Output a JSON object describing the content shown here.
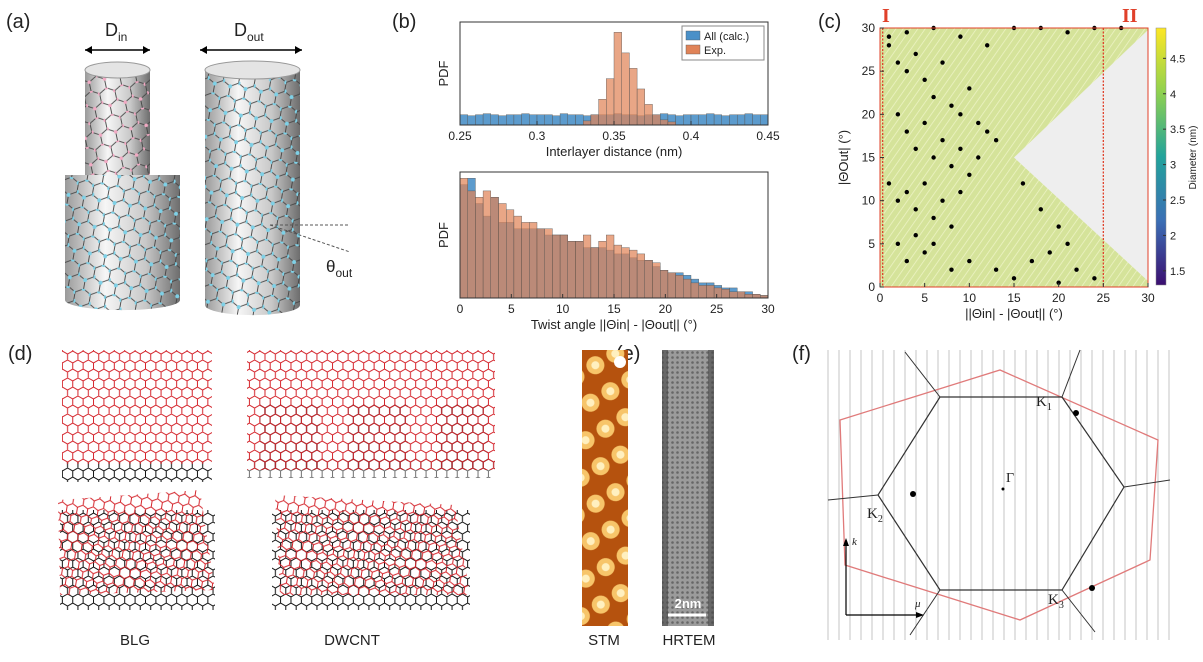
{
  "figure": {
    "a": {
      "label": "(a)",
      "d_in": {
        "main": "D",
        "sub": "in"
      },
      "d_out": {
        "main": "D",
        "sub": "out"
      },
      "theta_out": {
        "main": "θ",
        "sub": "out"
      }
    },
    "b": {
      "label": "(b)"
    },
    "c": {
      "label": "(c)"
    },
    "d": {
      "label": "(d)",
      "captions": [
        "BLG",
        "DWCNT"
      ]
    },
    "e": {
      "label": "(e)",
      "captions": [
        "STM",
        "HRTEM"
      ],
      "scale_bar": "2nm"
    },
    "f": {
      "label": "(f)",
      "k1": {
        "main": "K",
        "sub": "1"
      },
      "k2": {
        "main": "K",
        "sub": "2"
      },
      "k3": {
        "main": "K",
        "sub": "3"
      },
      "gamma": "Γ",
      "k": "k",
      "mu": "μ"
    }
  },
  "chart_data": [
    {
      "type": "histogram",
      "ylabel": "PDF",
      "xlabel": "Interlayer distance (nm)",
      "bins": [
        0.25,
        0.255,
        0.26,
        0.265,
        0.27,
        0.275,
        0.28,
        0.285,
        0.29,
        0.295,
        0.3,
        0.305,
        0.31,
        0.315,
        0.32,
        0.325,
        0.33,
        0.335,
        0.34,
        0.345,
        0.35,
        0.355,
        0.36,
        0.365,
        0.37,
        0.375,
        0.38,
        0.385,
        0.39,
        0.395,
        0.4,
        0.405,
        0.41,
        0.415,
        0.42,
        0.425,
        0.43,
        0.435,
        0.44,
        0.445,
        0.45
      ],
      "xlim": [
        0.25,
        0.45
      ],
      "xticks": [
        0.25,
        0.3,
        0.35,
        0.4,
        0.45
      ],
      "ylim": [
        0,
        1
      ],
      "legend": "upper right",
      "series": [
        {
          "name": "All (calc.)",
          "color": "#4a90c8",
          "values": [
            0.1,
            0.09,
            0.1,
            0.11,
            0.1,
            0.09,
            0.1,
            0.1,
            0.11,
            0.1,
            0.1,
            0.1,
            0.09,
            0.11,
            0.1,
            0.1,
            0.09,
            0.1,
            0.1,
            0.1,
            0.11,
            0.1,
            0.1,
            0.09,
            0.1,
            0.1,
            0.11,
            0.1,
            0.09,
            0.1,
            0.1,
            0.1,
            0.11,
            0.1,
            0.09,
            0.1,
            0.1,
            0.11,
            0.1,
            0.1
          ]
        },
        {
          "name": "Exp.",
          "color": "#e08358",
          "values": [
            0,
            0,
            0,
            0,
            0,
            0,
            0,
            0,
            0,
            0,
            0,
            0,
            0,
            0,
            0,
            0,
            0.04,
            0.1,
            0.25,
            0.45,
            0.9,
            0.7,
            0.55,
            0.35,
            0.2,
            0.1,
            0.05,
            0.03,
            0,
            0,
            0,
            0,
            0,
            0,
            0,
            0,
            0,
            0,
            0,
            0
          ]
        }
      ]
    },
    {
      "type": "histogram",
      "xlabel": "Twist angle ||Θin| - |Θout|| (°)",
      "ylabel": "PDF",
      "bins": [
        0,
        0.75,
        1.5,
        2.25,
        3,
        3.75,
        4.5,
        5.25,
        6,
        6.75,
        7.5,
        8.25,
        9,
        9.75,
        10.5,
        11.25,
        12,
        12.75,
        13.5,
        14.25,
        15,
        15.75,
        16.5,
        17.25,
        18,
        18.75,
        19.5,
        20.25,
        21,
        21.75,
        22.5,
        23.25,
        24,
        24.75,
        25.5,
        26.25,
        27,
        27.75,
        28.5,
        29.25,
        30
      ],
      "xlim": [
        0,
        30
      ],
      "xticks": [
        0,
        5,
        10,
        15,
        20,
        25,
        30
      ],
      "ylim": [
        0,
        1
      ],
      "series": [
        {
          "color": "#4a90c8",
          "values": [
            0.9,
            0.95,
            0.75,
            0.65,
            0.8,
            0.6,
            0.6,
            0.55,
            0.55,
            0.55,
            0.55,
            0.5,
            0.5,
            0.5,
            0.45,
            0.45,
            0.4,
            0.4,
            0.4,
            0.38,
            0.35,
            0.35,
            0.32,
            0.3,
            0.3,
            0.25,
            0.22,
            0.2,
            0.2,
            0.18,
            0.15,
            0.12,
            0.12,
            0.1,
            0.08,
            0.08,
            0.05,
            0.05,
            0.03,
            0.02
          ]
        },
        {
          "color": "#e08358",
          "values": [
            0.95,
            0.85,
            0.8,
            0.85,
            0.8,
            0.75,
            0.7,
            0.65,
            0.6,
            0.6,
            0.55,
            0.55,
            0.5,
            0.5,
            0.45,
            0.45,
            0.5,
            0.4,
            0.45,
            0.5,
            0.42,
            0.4,
            0.38,
            0.35,
            0.3,
            0.28,
            0.22,
            0.2,
            0.18,
            0.15,
            0.12,
            0.1,
            0.1,
            0.08,
            0.07,
            0.05,
            0.05,
            0.03,
            0.03,
            0.02
          ]
        }
      ]
    },
    {
      "type": "scatter",
      "xlabel": "||Θin| - |Θout|| (°)",
      "ylabel": "|ΘOut| (°)",
      "color": "#000000",
      "x": [
        1,
        2,
        3,
        4,
        5,
        6,
        7,
        8,
        9,
        10,
        11,
        12,
        13,
        2,
        3,
        4,
        5,
        6,
        7,
        8,
        9,
        10,
        11,
        1,
        2,
        3,
        4,
        5,
        6,
        7,
        8,
        9,
        2,
        3,
        4,
        5,
        6,
        8,
        10,
        1,
        3,
        6,
        9,
        12,
        15,
        18,
        21,
        24,
        27,
        13,
        15,
        17,
        19,
        20,
        22,
        24,
        16,
        18,
        20,
        21
      ],
      "y": [
        28,
        26,
        25,
        27,
        24,
        22,
        26,
        21,
        20,
        23,
        19,
        18,
        17,
        20,
        18,
        16,
        19,
        15,
        17,
        14,
        16,
        13,
        15,
        12,
        10,
        11,
        9,
        12,
        8,
        10,
        7,
        11,
        5,
        3,
        6,
        4,
        5,
        2,
        3,
        29,
        29.5,
        30,
        29,
        28,
        30,
        30,
        29.5,
        30,
        30,
        2,
        1,
        3,
        4,
        0.5,
        2,
        1,
        12,
        9,
        7,
        5
      ],
      "xlim": [
        0,
        30
      ],
      "ylim": [
        0,
        30
      ],
      "xticks": [
        0,
        5,
        10,
        15,
        20,
        25,
        30
      ],
      "yticks": [
        0,
        5,
        10,
        15,
        20,
        25,
        30
      ],
      "reference_lines": [
        0.3,
        25
      ],
      "reference_color": "#e0402a",
      "region_labels": [
        "I",
        "II"
      ],
      "colorbar": {
        "label": "Diameter (nm)",
        "lim": [
          1.3,
          4.9
        ],
        "ticks": [
          1.5,
          2,
          2.5,
          3,
          3.5,
          4,
          4.5
        ]
      }
    }
  ]
}
